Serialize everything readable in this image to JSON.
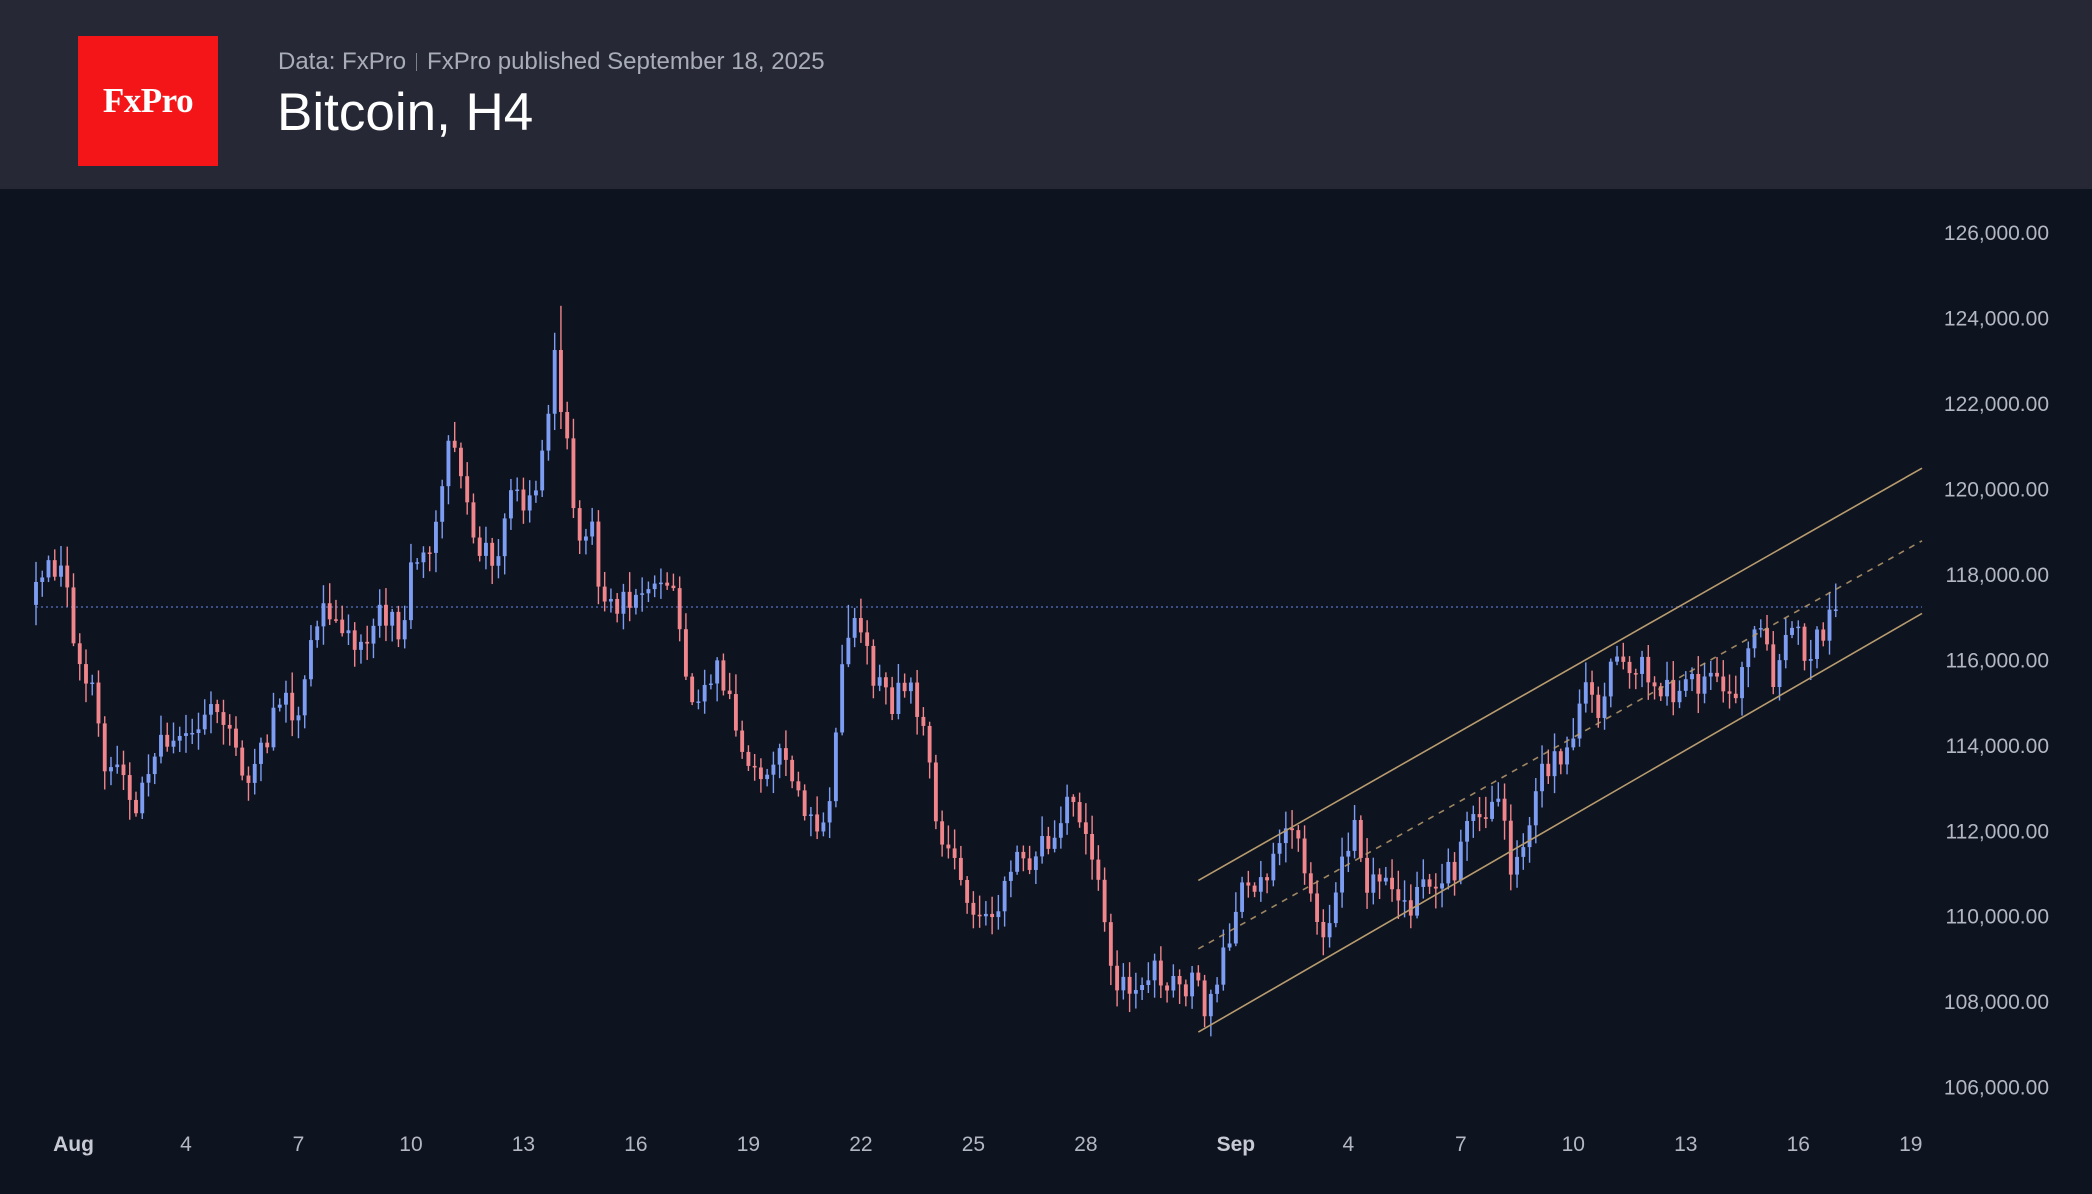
{
  "header": {
    "logo_text": "FxPro",
    "source": "Data: FxPro",
    "published": "FxPro published September 18, 2025",
    "title": "Bitcoin, H4"
  },
  "colors": {
    "background": "#0e1320",
    "header": "#262935",
    "logo": "#f41518",
    "up_candle": "#7d9df3",
    "down_candle": "#f0858b",
    "channel": "#b89c6e",
    "price_line": "#4b63a8"
  },
  "chart_data": {
    "type": "candlestick",
    "title": "Bitcoin, H4",
    "x_ticks": [
      {
        "day": 1,
        "label": "Aug",
        "major": true
      },
      {
        "day": 4,
        "label": "4"
      },
      {
        "day": 7,
        "label": "7"
      },
      {
        "day": 10,
        "label": "10"
      },
      {
        "day": 13,
        "label": "13"
      },
      {
        "day": 16,
        "label": "16"
      },
      {
        "day": 19,
        "label": "19"
      },
      {
        "day": 22,
        "label": "22"
      },
      {
        "day": 25,
        "label": "25"
      },
      {
        "day": 28,
        "label": "28"
      },
      {
        "day": 32,
        "label": "Sep",
        "major": true
      },
      {
        "day": 35,
        "label": "4"
      },
      {
        "day": 38,
        "label": "7"
      },
      {
        "day": 41,
        "label": "10"
      },
      {
        "day": 44,
        "label": "13"
      },
      {
        "day": 47,
        "label": "16"
      },
      {
        "day": 50,
        "label": "19"
      }
    ],
    "y_ticks": [
      "106,000.00",
      "108,000.00",
      "110,000.00",
      "112,000.00",
      "114,000.00",
      "116,000.00",
      "118,000.00",
      "120,000.00",
      "122,000.00",
      "124,000.00",
      "126,000.00"
    ],
    "ylim": [
      105500,
      126800
    ],
    "x_range_days": [
      0,
      50.3
    ],
    "current_price": 117250,
    "path_points": [
      [
        0,
        117600
      ],
      [
        0.5,
        118500
      ],
      [
        1.0,
        117800
      ],
      [
        1.2,
        116000
      ],
      [
        1.7,
        115200
      ],
      [
        2.0,
        113500
      ],
      [
        2.4,
        113800
      ],
      [
        2.8,
        112300
      ],
      [
        3.0,
        113400
      ],
      [
        3.6,
        114100
      ],
      [
        4.2,
        114500
      ],
      [
        4.8,
        114900
      ],
      [
        5.4,
        114200
      ],
      [
        5.8,
        113200
      ],
      [
        6.2,
        113900
      ],
      [
        6.7,
        115200
      ],
      [
        7.2,
        114600
      ],
      [
        7.6,
        116700
      ],
      [
        7.9,
        117300
      ],
      [
        8.4,
        116600
      ],
      [
        8.9,
        116300
      ],
      [
        9.4,
        117100
      ],
      [
        9.9,
        116600
      ],
      [
        10.2,
        118300
      ],
      [
        10.8,
        118900
      ],
      [
        11.2,
        121600
      ],
      [
        11.6,
        119900
      ],
      [
        12.0,
        118600
      ],
      [
        12.4,
        118300
      ],
      [
        12.8,
        119900
      ],
      [
        13.2,
        119600
      ],
      [
        13.6,
        120400
      ],
      [
        14.0,
        123100
      ],
      [
        14.3,
        121300
      ],
      [
        14.6,
        118500
      ],
      [
        15.0,
        119000
      ],
      [
        15.3,
        117200
      ],
      [
        15.8,
        117300
      ],
      [
        16.4,
        117500
      ],
      [
        16.9,
        117900
      ],
      [
        17.2,
        117500
      ],
      [
        17.5,
        115400
      ],
      [
        17.9,
        115200
      ],
      [
        18.3,
        116000
      ],
      [
        18.8,
        114800
      ],
      [
        19.2,
        113100
      ],
      [
        19.7,
        113500
      ],
      [
        20.1,
        113800
      ],
      [
        20.6,
        112600
      ],
      [
        21.0,
        112200
      ],
      [
        21.4,
        112900
      ],
      [
        21.7,
        116200
      ],
      [
        22.0,
        117100
      ],
      [
        22.5,
        115700
      ],
      [
        23.0,
        114900
      ],
      [
        23.4,
        115600
      ],
      [
        23.8,
        114600
      ],
      [
        24.2,
        112200
      ],
      [
        24.6,
        111600
      ],
      [
        25.0,
        110400
      ],
      [
        25.4,
        109800
      ],
      [
        25.8,
        110300
      ],
      [
        26.2,
        111400
      ],
      [
        26.6,
        111200
      ],
      [
        27.0,
        112100
      ],
      [
        27.3,
        111400
      ],
      [
        27.6,
        113000
      ],
      [
        28.0,
        112100
      ],
      [
        28.4,
        111100
      ],
      [
        28.7,
        109800
      ],
      [
        29.0,
        108300
      ],
      [
        29.4,
        108500
      ],
      [
        29.9,
        108800
      ],
      [
        30.4,
        108400
      ],
      [
        30.9,
        108100
      ],
      [
        31.1,
        109100
      ],
      [
        31.4,
        107600
      ],
      [
        31.7,
        108800
      ],
      [
        32.0,
        109600
      ],
      [
        32.4,
        110800
      ],
      [
        32.8,
        110600
      ],
      [
        33.2,
        111300
      ],
      [
        33.6,
        111900
      ],
      [
        33.9,
        111400
      ],
      [
        34.2,
        110300
      ],
      [
        34.5,
        109600
      ],
      [
        34.9,
        110900
      ],
      [
        35.3,
        112100
      ],
      [
        35.6,
        110700
      ],
      [
        36.0,
        110900
      ],
      [
        36.4,
        110600
      ],
      [
        36.8,
        110200
      ],
      [
        37.2,
        110700
      ],
      [
        37.6,
        110900
      ],
      [
        38.0,
        111000
      ],
      [
        38.4,
        112500
      ],
      [
        38.8,
        112000
      ],
      [
        39.2,
        113000
      ],
      [
        39.5,
        111000
      ],
      [
        39.9,
        111600
      ],
      [
        40.3,
        113500
      ],
      [
        40.7,
        113700
      ],
      [
        41.1,
        114100
      ],
      [
        41.5,
        115300
      ],
      [
        41.9,
        114800
      ],
      [
        42.2,
        116200
      ],
      [
        42.6,
        115700
      ],
      [
        43.0,
        116000
      ],
      [
        43.4,
        115500
      ],
      [
        43.8,
        115100
      ],
      [
        44.2,
        115300
      ],
      [
        44.6,
        115600
      ],
      [
        45.0,
        115400
      ],
      [
        45.4,
        115000
      ],
      [
        45.8,
        116500
      ],
      [
        46.2,
        116800
      ],
      [
        46.5,
        115700
      ],
      [
        46.8,
        116600
      ],
      [
        47.2,
        117000
      ],
      [
        47.4,
        115800
      ],
      [
        47.8,
        116700
      ],
      [
        48.1,
        117400
      ]
    ],
    "path_extremes": [
      {
        "day": 14.0,
        "high": 124300
      },
      {
        "day": 31.4,
        "low": 107200
      },
      {
        "day": 21.7,
        "high": 117300
      },
      {
        "day": 48.0,
        "high": 117800
      }
    ],
    "channel": {
      "start_day": 31.0,
      "end_day": 50.3,
      "lower": [
        107300,
        117100
      ],
      "middle": [
        109250,
        118800
      ],
      "upper": [
        110850,
        120500
      ]
    }
  }
}
